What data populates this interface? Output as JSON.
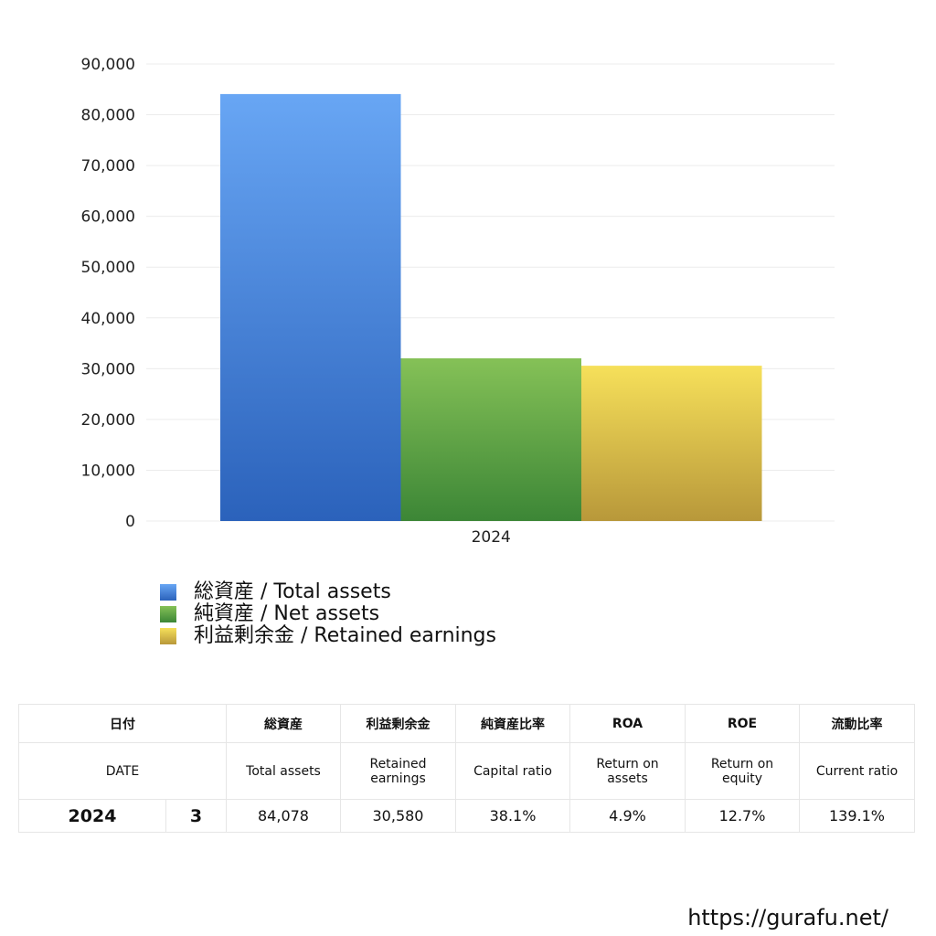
{
  "chart_data": {
    "type": "bar",
    "categories": [
      "2024"
    ],
    "series": [
      {
        "name": "総資産 / Total assets",
        "values": [
          84078
        ],
        "color_top": "#68a6f4",
        "color_bottom": "#2b62bb"
      },
      {
        "name": "純資産 / Net assets",
        "values": [
          32034
        ],
        "color_top": "#85c157",
        "color_bottom": "#3c8636"
      },
      {
        "name": "利益剰余金 / Retained earnings",
        "values": [
          30580
        ],
        "color_top": "#f6e05a",
        "color_bottom": "#b8983a"
      }
    ],
    "ylim": [
      0,
      90000
    ],
    "yticks": [
      "0",
      "10,000",
      "20,000",
      "30,000",
      "40,000",
      "50,000",
      "60,000",
      "70,000",
      "80,000",
      "90,000"
    ],
    "grid": true,
    "legend": "bottom-left"
  },
  "table": {
    "header_jp": [
      "日付",
      "総資産",
      "利益剰余金",
      "純資産比率",
      "ROA",
      "ROE",
      "流動比率"
    ],
    "header_en": [
      "DATE",
      "Total assets",
      "Retained earnings",
      "Capital ratio",
      "Return on assets",
      "Return on equity",
      "Current ratio"
    ],
    "rows": [
      [
        "2024",
        "3",
        "84,078",
        "30,580",
        "38.1%",
        "4.9%",
        "12.7%",
        "139.1%"
      ]
    ]
  },
  "footer": "https://gurafu.net/"
}
